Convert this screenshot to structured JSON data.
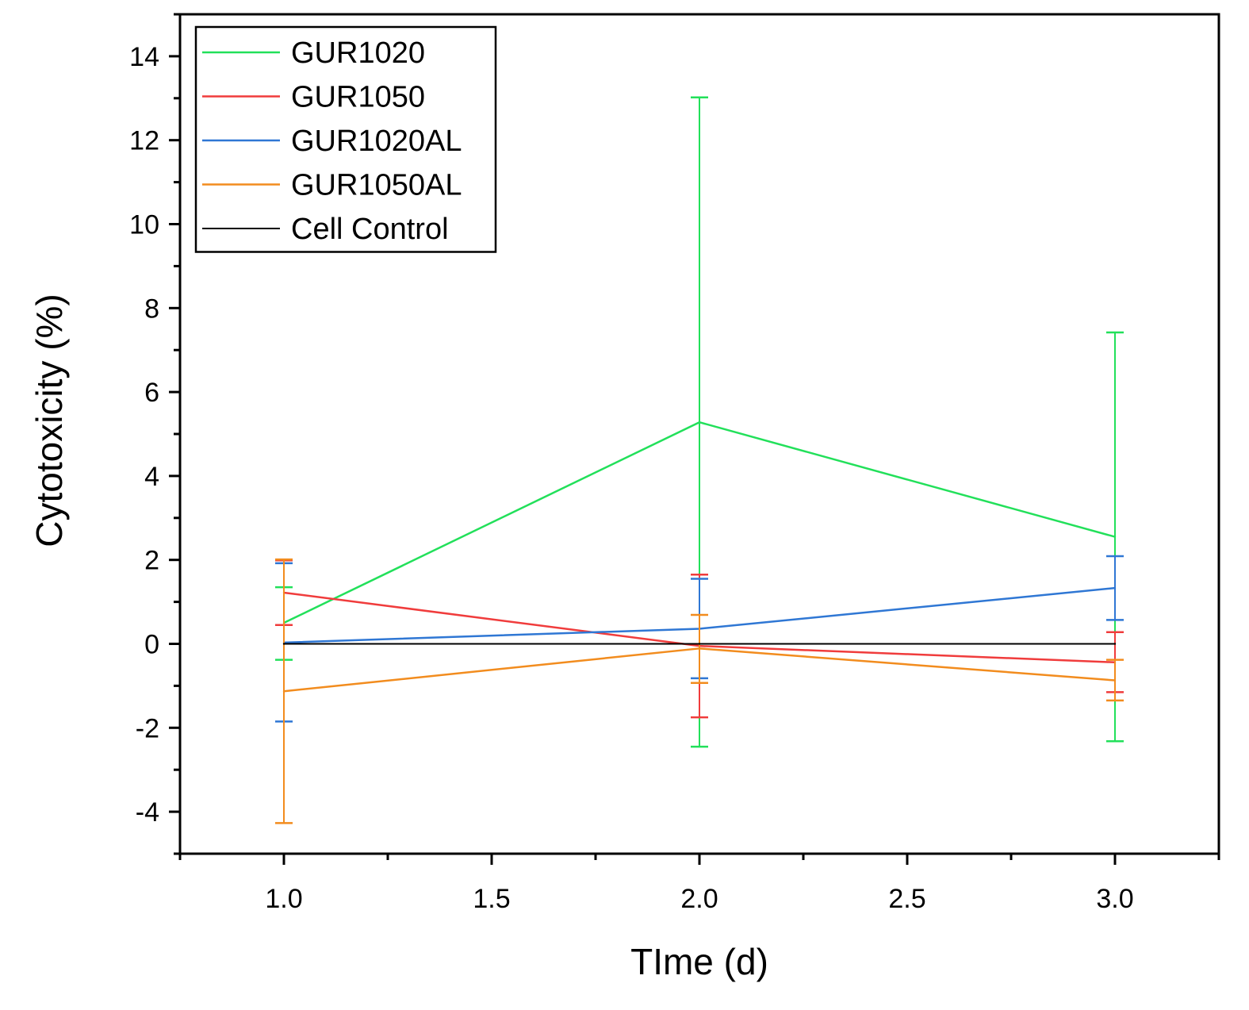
{
  "chart_data": {
    "type": "line",
    "title": "",
    "xlabel": "TIme (d)",
    "ylabel": "Cytotoxicity (%)",
    "xlim": [
      0.75,
      3.25
    ],
    "ylim": [
      -5,
      15
    ],
    "x": [
      1.0,
      2.0,
      3.0
    ],
    "x_ticks": [
      1.0,
      1.5,
      2.0,
      2.5,
      3.0
    ],
    "x_tick_labels": [
      "1.0",
      "1.5",
      "2.0",
      "2.5",
      "3.0"
    ],
    "y_ticks": [
      -4,
      -2,
      0,
      2,
      4,
      6,
      8,
      10,
      12,
      14
    ],
    "y_tick_labels": [
      "-4",
      "-2",
      "0",
      "2",
      "4",
      "6",
      "8",
      "10",
      "12",
      "14"
    ],
    "grid": false,
    "legend_position": "top-left",
    "series": [
      {
        "name": "GUR1020",
        "color": "#22e05a",
        "values": [
          0.5,
          5.28,
          2.55
        ],
        "err_low": [
          -0.38,
          -2.45,
          -2.32
        ],
        "err_high": [
          1.35,
          13.02,
          7.42
        ]
      },
      {
        "name": "GUR1050",
        "color": "#f03c3c",
        "values": [
          1.22,
          -0.05,
          -0.44
        ],
        "err_low": [
          0.45,
          -1.75,
          -1.15
        ],
        "err_high": [
          1.99,
          1.65,
          0.28
        ]
      },
      {
        "name": "GUR1020AL",
        "color": "#2f77d4",
        "values": [
          0.03,
          0.36,
          1.33
        ],
        "err_low": [
          -1.85,
          -0.82,
          0.57
        ],
        "err_high": [
          1.92,
          1.55,
          2.09
        ]
      },
      {
        "name": "GUR1050AL",
        "color": "#f28c1e",
        "values": [
          -1.13,
          -0.11,
          -0.87
        ],
        "err_low": [
          -4.27,
          -0.93,
          -1.35
        ],
        "err_high": [
          2.01,
          0.69,
          -0.38
        ]
      },
      {
        "name": "Cell Control",
        "color": "#000000",
        "values": [
          0,
          0,
          0
        ],
        "err_low": null,
        "err_high": null
      }
    ]
  }
}
